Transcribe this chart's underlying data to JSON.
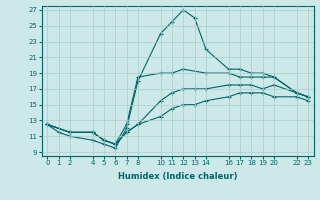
{
  "xlabel": "Humidex (Indice chaleur)",
  "bg_color": "#cce8e8",
  "grid_color": "#aacccc",
  "line_color": "#006666",
  "xticks": [
    0,
    1,
    2,
    4,
    5,
    6,
    7,
    8,
    10,
    11,
    12,
    13,
    14,
    16,
    17,
    18,
    19,
    20,
    22,
    23
  ],
  "yticks": [
    9,
    11,
    13,
    15,
    17,
    19,
    21,
    23,
    25,
    27
  ],
  "xlim": [
    -0.5,
    23.5
  ],
  "ylim": [
    8.5,
    27.5
  ],
  "line1_x": [
    0,
    1,
    2,
    4,
    5,
    6,
    7,
    8,
    10,
    11,
    12,
    13,
    14,
    16,
    17,
    18,
    19,
    20,
    22,
    23
  ],
  "line1_y": [
    12.5,
    11.5,
    11.0,
    10.5,
    10.0,
    9.5,
    12.0,
    18.0,
    24.0,
    25.5,
    27.0,
    26.0,
    22.0,
    19.5,
    19.5,
    19.0,
    19.0,
    18.5,
    16.5,
    16.0
  ],
  "line2_x": [
    0,
    2,
    4,
    5,
    6,
    7,
    8,
    10,
    11,
    12,
    14,
    16,
    17,
    18,
    19,
    20,
    22,
    23
  ],
  "line2_y": [
    12.5,
    11.5,
    11.5,
    10.5,
    10.0,
    12.5,
    18.5,
    19.0,
    19.0,
    19.5,
    19.0,
    19.0,
    18.5,
    18.5,
    18.5,
    18.5,
    16.5,
    16.0
  ],
  "line3_x": [
    0,
    2,
    4,
    5,
    6,
    7,
    8,
    10,
    11,
    12,
    13,
    14,
    16,
    17,
    18,
    19,
    20,
    22,
    23
  ],
  "line3_y": [
    12.5,
    11.5,
    11.5,
    10.5,
    10.0,
    11.5,
    12.5,
    15.5,
    16.5,
    17.0,
    17.0,
    17.0,
    17.5,
    17.5,
    17.5,
    17.0,
    17.5,
    16.5,
    16.0
  ],
  "line4_x": [
    0,
    2,
    4,
    5,
    6,
    7,
    8,
    10,
    11,
    12,
    13,
    14,
    16,
    17,
    18,
    19,
    20,
    22,
    23
  ],
  "line4_y": [
    12.5,
    11.5,
    11.5,
    10.5,
    10.0,
    11.5,
    12.5,
    13.5,
    14.5,
    15.0,
    15.0,
    15.5,
    16.0,
    16.5,
    16.5,
    16.5,
    16.0,
    16.0,
    15.5
  ]
}
